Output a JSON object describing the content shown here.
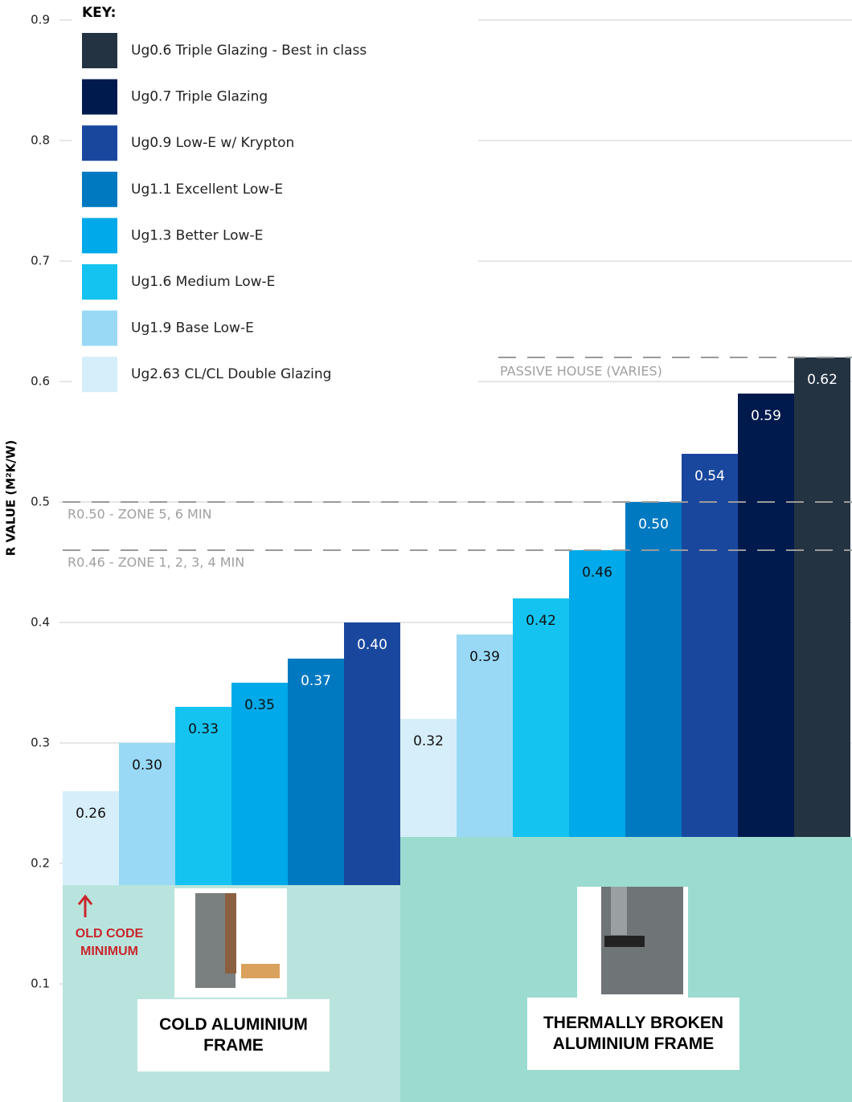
{
  "chart_data": {
    "type": "bar",
    "y_label": "R VALUE   (M²K/W)",
    "legend_title": "KEY:",
    "categories": [
      "COLD ALUMINIUM FRAME",
      "THERMALLY BROKEN ALUMINIUM FRAME"
    ],
    "series": [
      {
        "name": "Ug2.63 CL/CL Double Glazing",
        "color": "#d6eefa",
        "values": [
          0.26,
          0.32
        ],
        "value_labels": [
          "0.26",
          "0.32"
        ]
      },
      {
        "name": "Ug1.9 Base Low-E",
        "color": "#99d9f5",
        "values": [
          0.3,
          0.39
        ],
        "value_labels": [
          "0.30",
          "0.39"
        ]
      },
      {
        "name": "Ug1.6 Medium Low-E",
        "color": "#14c3f0",
        "values": [
          0.33,
          0.42
        ],
        "value_labels": [
          "0.33",
          "0.42"
        ]
      },
      {
        "name": "Ug1.3 Better Low-E",
        "color": "#00a9e9",
        "values": [
          0.35,
          0.46
        ],
        "value_labels": [
          "0.35",
          "0.46"
        ]
      },
      {
        "name": "Ug1.1 Excellent Low-E",
        "color": "#0079c1",
        "values": [
          0.37,
          0.5
        ],
        "value_labels": [
          "0.37",
          "0.50"
        ]
      },
      {
        "name": "Ug0.9 Low-E w/ Krypton",
        "color": "#1a479e",
        "values": [
          0.4,
          0.54
        ],
        "value_labels": [
          "0.40",
          "0.54"
        ]
      },
      {
        "name": "Ug0.7 Triple Glazing",
        "color": "#001a4d",
        "values": [
          null,
          0.59
        ],
        "value_labels": [
          null,
          "0.59"
        ]
      },
      {
        "name": "Ug0.6 Triple Glazing - Best in class",
        "color": "#243342",
        "values": [
          null,
          0.62
        ],
        "value_labels": [
          null,
          "0.62"
        ]
      }
    ],
    "reference_lines": [
      {
        "value": 0.62,
        "label": "PASSIVE HOUSE (VARIES)"
      },
      {
        "value": 0.5,
        "label": "R0.50 - ZONE 5, 6 MIN"
      },
      {
        "value": 0.46,
        "label": "R0.46 - ZONE 1, 2, 3, 4 MIN"
      }
    ],
    "annotation": "OLD CODE MINIMUM",
    "ylim": [
      0,
      0.9
    ],
    "yticks": [
      0.1,
      0.2,
      0.3,
      0.4,
      0.5,
      0.6,
      0.7,
      0.8,
      0.9
    ],
    "grid": true
  }
}
